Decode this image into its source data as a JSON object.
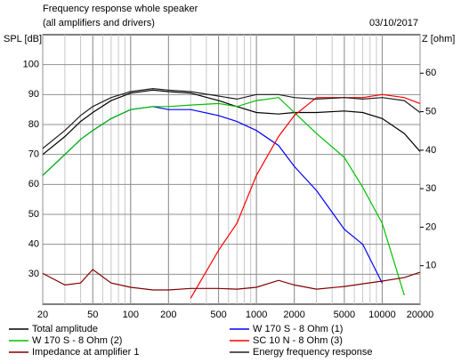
{
  "chart_data": {
    "type": "line",
    "title": "Frequency response whole speaker",
    "subtitle": "(all amplifiers and drivers)",
    "date": "03/10/2017",
    "y_label": "SPL [dB]",
    "y2_label": "Z [ohm]",
    "x_scale": "log",
    "grid": true,
    "legend": "bottom",
    "x": [
      20,
      30,
      40,
      50,
      70,
      100,
      150,
      200,
      300,
      500,
      700,
      1000,
      1500,
      2000,
      3000,
      5000,
      7000,
      10000,
      15000,
      20000
    ],
    "xlim": [
      20,
      20000
    ],
    "xticks": [
      20,
      50,
      100,
      200,
      500,
      1000,
      2000,
      5000,
      10000,
      20000
    ],
    "ylim": [
      20,
      110
    ],
    "yticks": [
      30,
      40,
      50,
      60,
      70,
      80,
      90,
      100
    ],
    "y2lim": [
      0,
      70
    ],
    "y2ticks": [
      10,
      20,
      30,
      40,
      50,
      60
    ],
    "series": [
      {
        "name": "Total amplitude",
        "color": "#000000",
        "values": [
          70,
          76,
          81,
          84,
          88,
          90.5,
          91.5,
          91,
          90.5,
          88,
          86,
          84,
          83.5,
          84,
          84,
          84.5,
          84,
          82,
          77,
          71
        ]
      },
      {
        "name": "W 170 S - 8 Ohm (1)",
        "color": "#0000ff",
        "values": [
          63,
          70,
          75,
          78,
          82,
          85,
          86,
          85,
          85,
          83,
          81,
          78,
          73,
          66,
          58,
          45,
          40,
          27,
          null,
          null
        ]
      },
      {
        "name": "W 170 S - 8 Ohm (2)",
        "color": "#00c000",
        "values": [
          63,
          70,
          75,
          78,
          82,
          85,
          86,
          86,
          86.5,
          87,
          86,
          88,
          89,
          84,
          77,
          69,
          59,
          47,
          23,
          null
        ]
      },
      {
        "name": "SC 10 N - 8 Ohm (3)",
        "color": "#ff0000",
        "values": [
          null,
          null,
          null,
          null,
          null,
          null,
          null,
          null,
          22,
          38,
          47,
          63,
          76,
          83,
          89,
          89,
          89,
          90,
          89,
          87
        ]
      },
      {
        "name": "Impedance at amplifier 1",
        "color": "#800000",
        "axis": "y2",
        "values": [
          8,
          5,
          5.5,
          9,
          5.5,
          4.4,
          3.7,
          3.7,
          4.1,
          4.1,
          3.9,
          4.4,
          6.2,
          5,
          3.9,
          4.6,
          5.3,
          6,
          6.9,
          8.3
        ]
      },
      {
        "name": "Energy frequency response",
        "color": "#202020",
        "values": [
          72,
          78,
          83,
          86,
          89,
          91,
          92,
          91.5,
          91,
          89.5,
          88.5,
          90,
          90,
          89,
          88.5,
          89,
          88.5,
          89,
          88,
          84
        ]
      }
    ]
  }
}
